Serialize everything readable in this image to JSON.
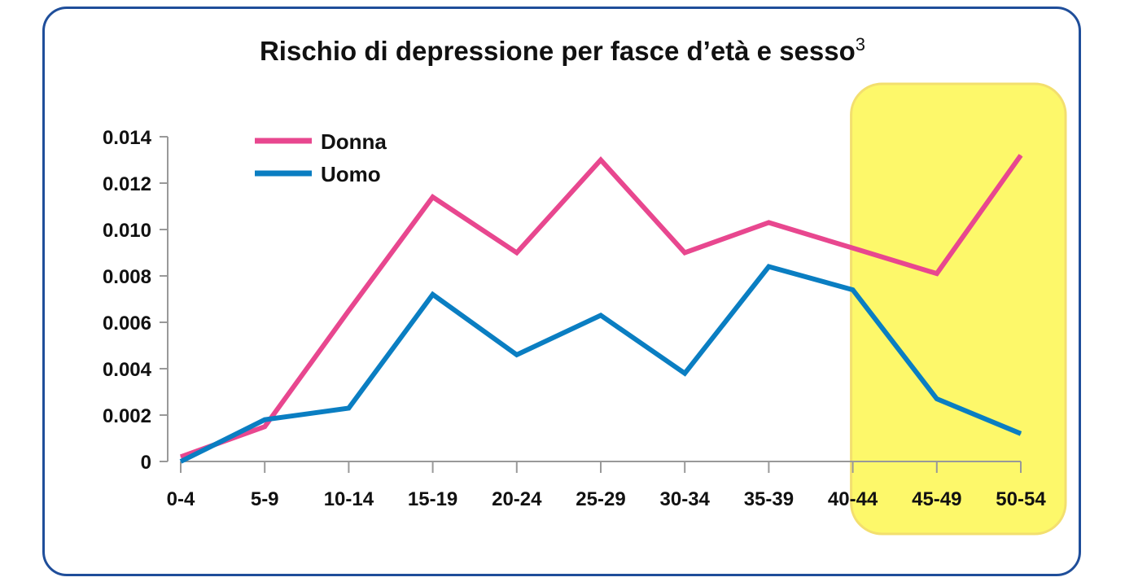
{
  "chart_data": {
    "type": "line",
    "title": "Rischio di depressione per fasce d’età e sesso",
    "title_superscript": "3",
    "categories": [
      "0-4",
      "5-9",
      "10-14",
      "15-19",
      "20-24",
      "25-29",
      "30-34",
      "35-39",
      "40-44",
      "45-49",
      "50-54"
    ],
    "y_ticks": [
      "0",
      "0.002",
      "0.004",
      "0.006",
      "0.008",
      "0.010",
      "0.012",
      "0.014"
    ],
    "ylim": [
      0,
      0.014
    ],
    "series": [
      {
        "name": "Donna",
        "color": "#e8478f",
        "values": [
          0.0002,
          0.0015,
          0.0065,
          0.0114,
          0.009,
          0.013,
          0.009,
          0.0103,
          0.0092,
          0.0081,
          0.0132
        ]
      },
      {
        "name": "Uomo",
        "color": "#0a7ec2",
        "values": [
          0.0,
          0.0018,
          0.0023,
          0.0072,
          0.0046,
          0.0063,
          0.0038,
          0.0084,
          0.0074,
          0.0027,
          0.0012
        ]
      }
    ],
    "highlight": {
      "from": "40-44",
      "to": "50-54",
      "color": "#fdf86a"
    },
    "legend_position": "top-left"
  }
}
